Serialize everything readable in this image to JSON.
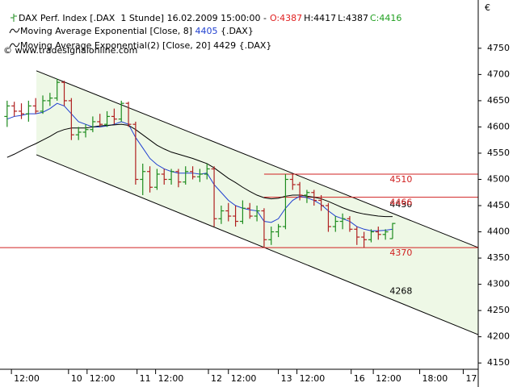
{
  "chart_data": {
    "type": "ohlc",
    "title": "DAX Perf. Index [.DAX  1 Stunde] 16.02.2009 15:00:00 -",
    "quote": [
      "O:4387",
      "H:4417",
      "L:4387",
      "C:4416"
    ],
    "quote_colors": [
      "#e02020",
      "#000000",
      "#000000",
      "#20a020"
    ],
    "symbol": "{.DAX}",
    "watermark": "© www.tradesignalonline.com",
    "currency": "€",
    "up_color": "#1e8c1e",
    "down_color": "#b02020",
    "x": [
      0,
      1,
      2,
      3,
      4,
      5,
      6,
      7,
      8,
      9,
      10,
      11,
      12,
      13,
      14,
      15,
      16,
      17,
      18,
      19,
      20,
      21,
      22,
      23,
      24,
      25,
      26,
      27,
      28,
      29,
      30,
      31,
      32,
      33,
      34,
      35,
      36,
      37,
      38,
      39,
      40,
      41,
      42,
      43,
      44,
      45,
      46,
      47,
      48,
      49,
      50,
      51,
      52,
      53,
      54
    ],
    "open": [
      4620,
      4640,
      4630,
      4625,
      4640,
      4630,
      4650,
      4655,
      4685,
      4650,
      4585,
      4590,
      4595,
      4610,
      4605,
      4620,
      4615,
      4645,
      4605,
      4500,
      4515,
      4485,
      4510,
      4500,
      4515,
      4495,
      4515,
      4505,
      4510,
      4520,
      4425,
      4440,
      4430,
      4420,
      4445,
      4430,
      4440,
      4385,
      4400,
      4410,
      4500,
      4490,
      4470,
      4475,
      4460,
      4450,
      4410,
      4420,
      4425,
      4405,
      4390,
      4385,
      4400,
      4395,
      4387
    ],
    "high": [
      4650,
      4648,
      4645,
      4650,
      4655,
      4660,
      4665,
      4692,
      4688,
      4655,
      4600,
      4605,
      4620,
      4625,
      4630,
      4635,
      4650,
      4648,
      4610,
      4530,
      4525,
      4520,
      4520,
      4520,
      4520,
      4525,
      4525,
      4520,
      4530,
      4525,
      4450,
      4455,
      4450,
      4460,
      4455,
      4450,
      4445,
      4410,
      4415,
      4510,
      4510,
      4495,
      4480,
      4480,
      4470,
      4455,
      4430,
      4435,
      4430,
      4410,
      4400,
      4405,
      4410,
      4405,
      4417
    ],
    "low": [
      4600,
      4620,
      4615,
      4610,
      4625,
      4625,
      4640,
      4650,
      4640,
      4575,
      4575,
      4580,
      4590,
      4600,
      4600,
      4605,
      4610,
      4600,
      4490,
      4470,
      4475,
      4480,
      4490,
      4490,
      4485,
      4490,
      4500,
      4495,
      4500,
      4410,
      4415,
      4420,
      4410,
      4415,
      4425,
      4420,
      4370,
      4375,
      4390,
      4405,
      4480,
      4460,
      4455,
      4450,
      4440,
      4400,
      4400,
      4405,
      4400,
      4375,
      4370,
      4380,
      4385,
      4385,
      4387
    ],
    "close": [
      4640,
      4630,
      4625,
      4640,
      4630,
      4650,
      4655,
      4685,
      4650,
      4585,
      4590,
      4595,
      4610,
      4605,
      4620,
      4615,
      4645,
      4605,
      4500,
      4515,
      4485,
      4510,
      4500,
      4515,
      4495,
      4515,
      4505,
      4510,
      4520,
      4425,
      4440,
      4430,
      4420,
      4445,
      4430,
      4440,
      4385,
      4400,
      4410,
      4500,
      4490,
      4470,
      4475,
      4460,
      4450,
      4410,
      4420,
      4425,
      4405,
      4390,
      4385,
      4400,
      4395,
      4400,
      4416
    ],
    "series": [
      {
        "name": "Moving Average Exponential [Close, 8]",
        "color": "#1f3fd0",
        "last_value": 4405,
        "values": [
          4615,
          4620,
          4622,
          4625,
          4625,
          4628,
          4635,
          4645,
          4640,
          4625,
          4610,
          4605,
          4600,
          4600,
          4602,
          4605,
          4610,
          4605,
          4580,
          4560,
          4540,
          4528,
          4520,
          4515,
          4512,
          4512,
          4512,
          4510,
          4512,
          4490,
          4475,
          4460,
          4450,
          4445,
          4442,
          4440,
          4420,
          4418,
          4425,
          4445,
          4460,
          4468,
          4465,
          4460,
          4452,
          4440,
          4430,
          4425,
          4420,
          4410,
          4405,
          4402,
          4402,
          4403,
          4405
        ]
      },
      {
        "name": "Moving Average Exponential(2) [Close, 20]",
        "color": "#000000",
        "last_value": 4429,
        "values": [
          4542,
          4548,
          4555,
          4562,
          4568,
          4575,
          4582,
          4590,
          4595,
          4598,
          4598,
          4598,
          4600,
          4602,
          4603,
          4604,
          4605,
          4603,
          4595,
          4585,
          4575,
          4565,
          4558,
          4552,
          4548,
          4544,
          4540,
          4535,
          4530,
          4522,
          4512,
          4502,
          4494,
          4485,
          4477,
          4470,
          4465,
          4463,
          4464,
          4468,
          4470,
          4470,
          4468,
          4466,
          4463,
          4458,
          4452,
          4446,
          4441,
          4437,
          4434,
          4432,
          4430,
          4429,
          4429
        ]
      }
    ],
    "channel": {
      "fill": "#eef8e6",
      "color": "#000000",
      "upper": {
        "x": [
          4.1,
          66
        ],
        "values": [
          4707,
          4370
        ]
      },
      "lower": {
        "x": [
          4.1,
          66
        ],
        "values": [
          4547,
          4204
        ]
      }
    },
    "channel_labels": [
      4430,
      4268
    ],
    "levels": [
      4510,
      4466,
      4370
    ],
    "level_start": [
      36,
      36,
      -1
    ],
    "level_color": "#d02020",
    "xlim": [
      -1,
      66
    ],
    "ylim": [
      4138,
      4842
    ],
    "yticks": [
      4150,
      4200,
      4250,
      4300,
      4350,
      4400,
      4450,
      4500,
      4550,
      4600,
      4650,
      4700,
      4750
    ],
    "xticks": [
      {
        "value": 0.6,
        "label": "12:00"
      },
      {
        "value": 8.6,
        "label": "10"
      },
      {
        "value": 11.2,
        "label": "12:00"
      },
      {
        "value": 18.2,
        "label": "11"
      },
      {
        "value": 20.8,
        "label": "12:00"
      },
      {
        "value": 28.2,
        "label": "12"
      },
      {
        "value": 31,
        "label": "12:00"
      },
      {
        "value": 38,
        "label": "13"
      },
      {
        "value": 40.6,
        "label": "12:00"
      },
      {
        "value": 48.2,
        "label": "16"
      },
      {
        "value": 51.3,
        "label": "12:00"
      },
      {
        "value": 57.8,
        "label": "18:00"
      },
      {
        "value": 63.9,
        "label": "17"
      }
    ],
    "grid": false
  }
}
